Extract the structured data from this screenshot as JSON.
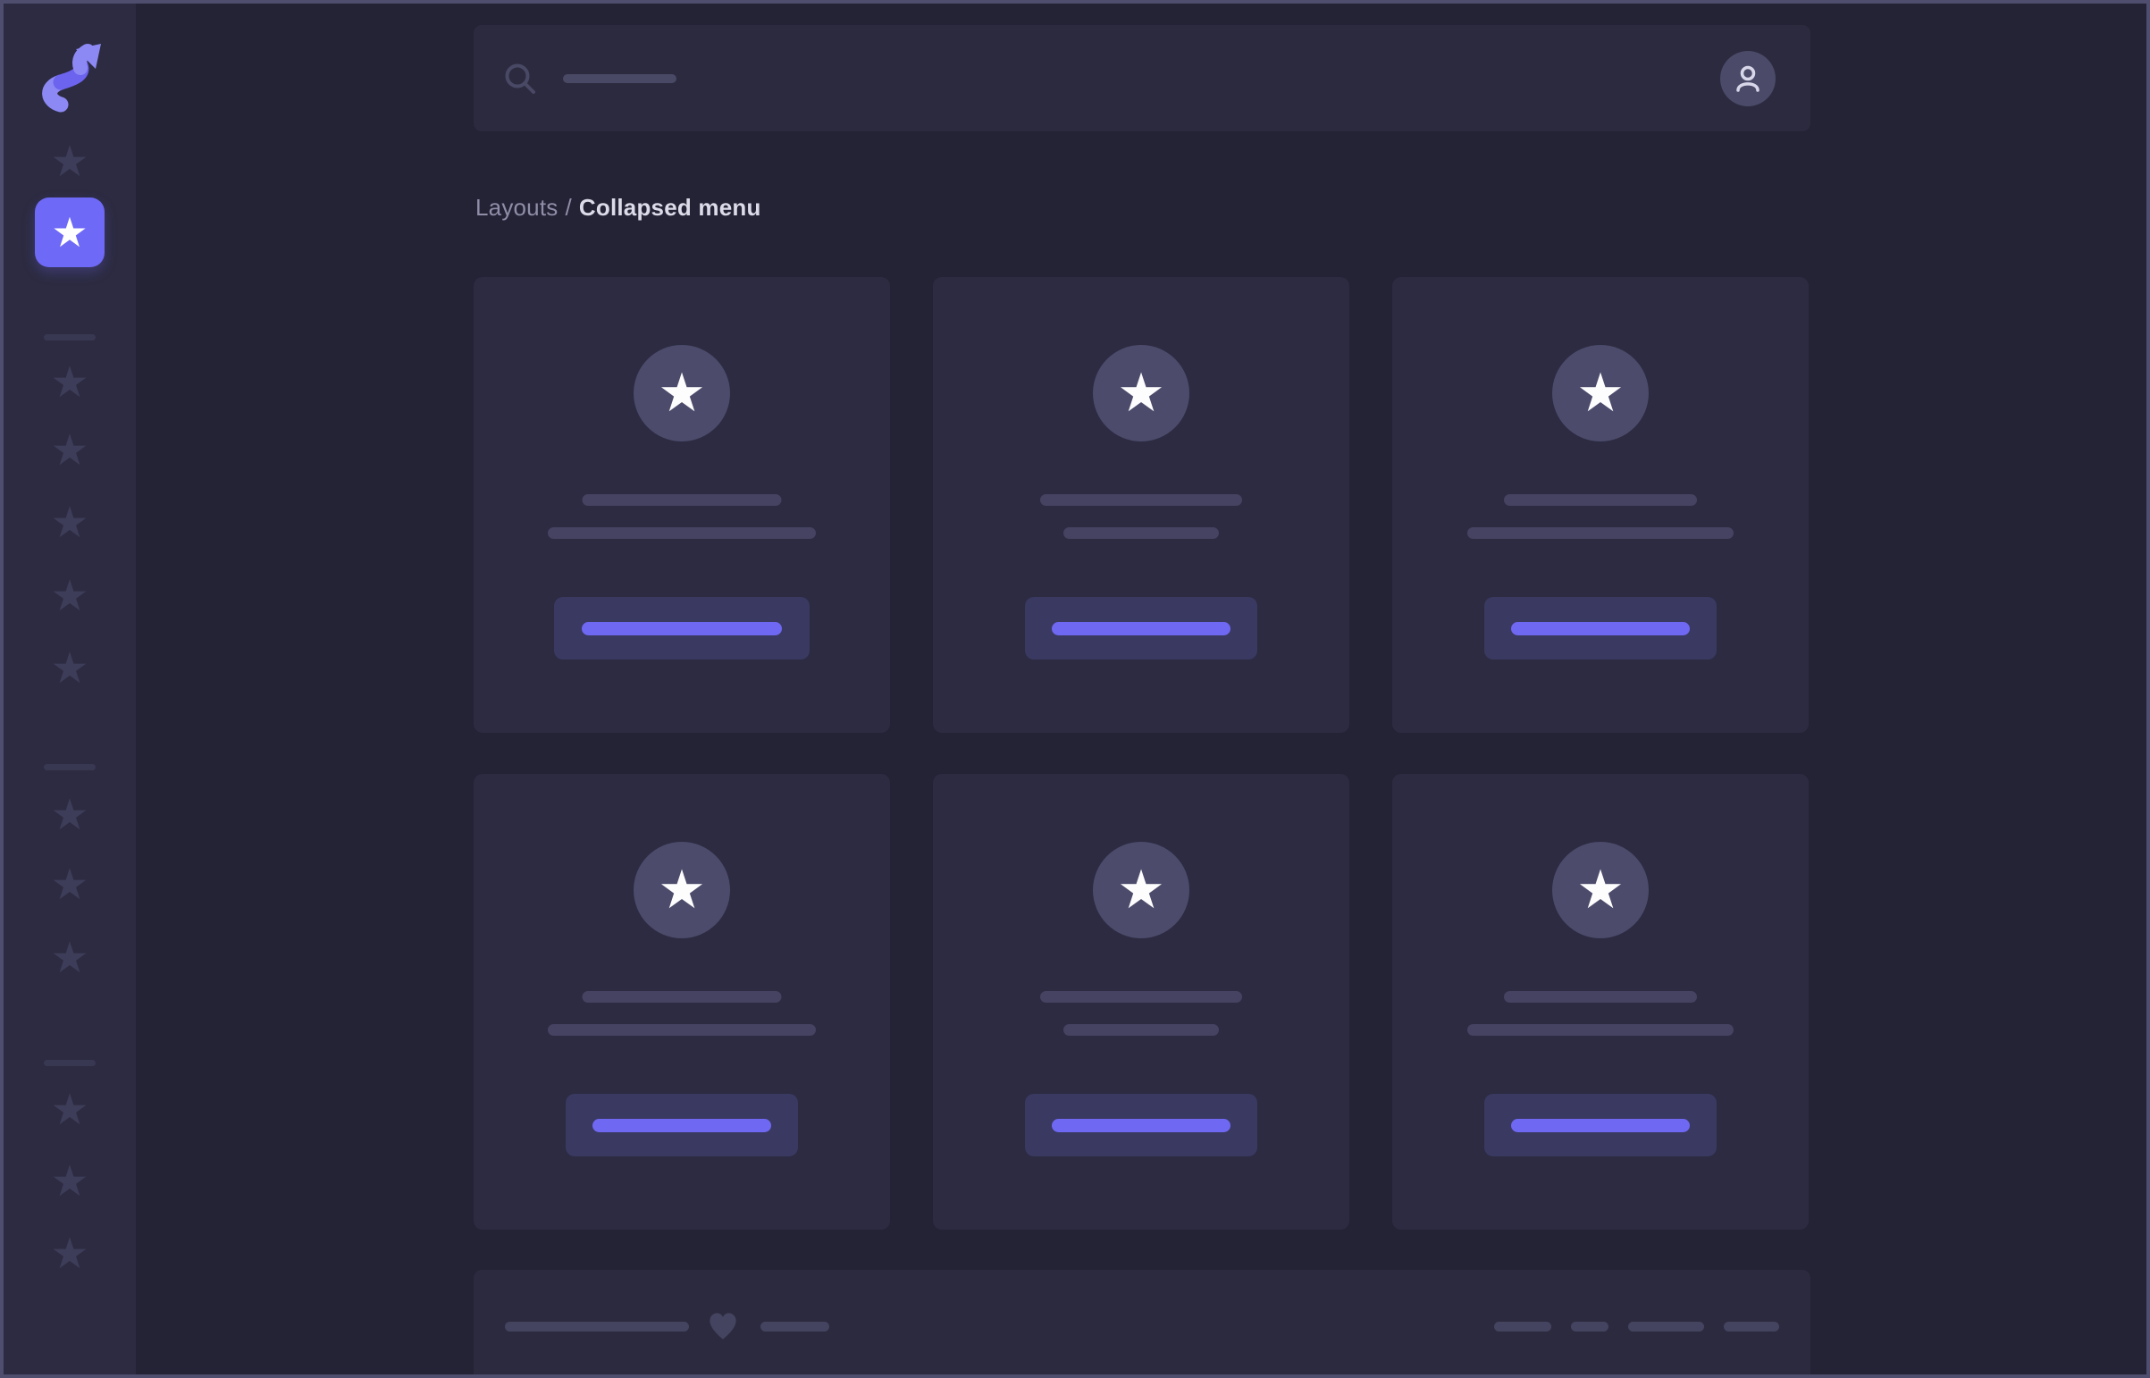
{
  "icons": {
    "star": "★"
  },
  "colors": {
    "background": "#242335",
    "sidebar": "#2c2b41",
    "panel": "#2b2a3f",
    "card": "#2c2b41",
    "accent_active": "#6e69f6",
    "accent_button_line": "#6f68f2",
    "placeholder_muted": "#4a4965",
    "placeholder_dim": "#454361",
    "frame_border": "#4f4e6e"
  },
  "breadcrumb": {
    "section": "Layouts",
    "separator": "/",
    "current": "Collapsed menu"
  },
  "topbar": {
    "search_icon": "magnifier",
    "search_placeholder_width": 127,
    "user_icon": "person"
  },
  "sidebar": {
    "logo_icon": "s-arrow-logo",
    "items": [
      {
        "kind": "item",
        "icon": "star-icon",
        "active": false
      },
      {
        "kind": "item",
        "icon": "star-icon",
        "active": true
      },
      {
        "kind": "divider"
      },
      {
        "kind": "item",
        "icon": "star-icon",
        "active": false
      },
      {
        "kind": "item",
        "icon": "star-icon",
        "active": false
      },
      {
        "kind": "item",
        "icon": "star-icon",
        "active": false
      },
      {
        "kind": "item",
        "icon": "star-icon",
        "active": false
      },
      {
        "kind": "item",
        "icon": "star-icon",
        "active": false
      },
      {
        "kind": "divider"
      },
      {
        "kind": "item",
        "icon": "star-icon",
        "active": false
      },
      {
        "kind": "item",
        "icon": "star-icon",
        "active": false
      },
      {
        "kind": "item",
        "icon": "star-icon",
        "active": false
      },
      {
        "kind": "divider"
      },
      {
        "kind": "item",
        "icon": "star-icon",
        "active": false
      },
      {
        "kind": "item",
        "icon": "star-icon",
        "active": false
      },
      {
        "kind": "item",
        "icon": "star-icon",
        "active": false
      }
    ]
  },
  "cards": [
    {
      "icon": "star-icon",
      "line1_w": 223,
      "line2_w": 300,
      "button_w": 286,
      "button_line_w": 224
    },
    {
      "icon": "star-icon",
      "line1_w": 226,
      "line2_w": 174,
      "button_w": 260,
      "button_line_w": 200
    },
    {
      "icon": "star-icon",
      "line1_w": 216,
      "line2_w": 298,
      "button_w": 260,
      "button_line_w": 200
    },
    {
      "icon": "star-icon",
      "line1_w": 223,
      "line2_w": 300,
      "button_w": 260,
      "button_line_w": 200
    },
    {
      "icon": "star-icon",
      "line1_w": 226,
      "line2_w": 174,
      "button_w": 260,
      "button_line_w": 200
    },
    {
      "icon": "star-icon",
      "line1_w": 216,
      "line2_w": 298,
      "button_w": 260,
      "button_line_w": 200
    }
  ],
  "footer": {
    "left_line_w": 206,
    "heart_icon": "heart-icon",
    "short_line_w": 77,
    "pill_widths": [
      64,
      42,
      85,
      62
    ]
  }
}
